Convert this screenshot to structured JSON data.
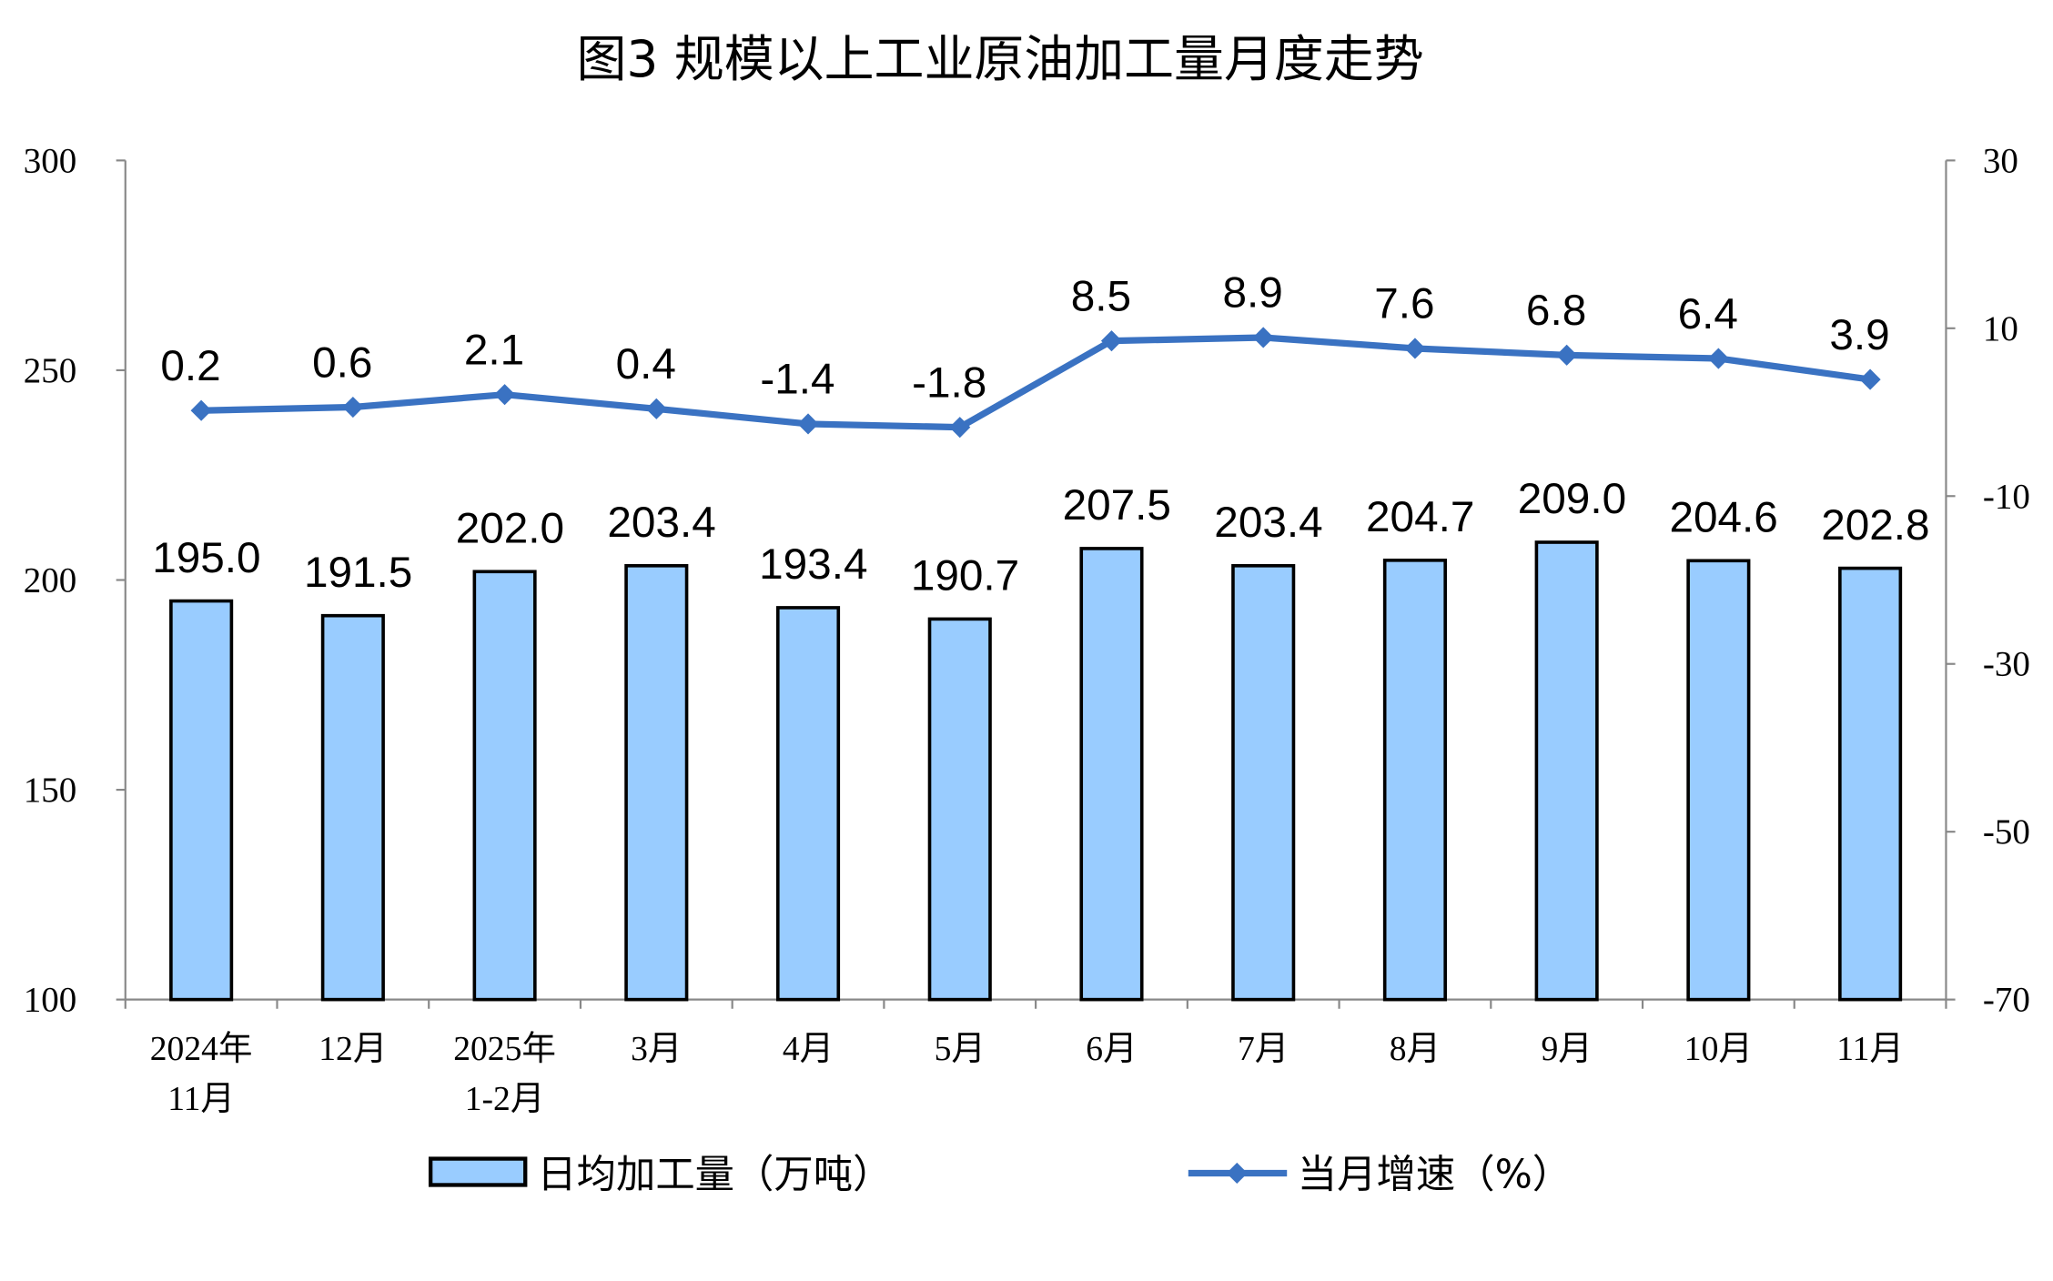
{
  "chart_data": {
    "type": "bar+line",
    "title": "图3  规模以上工业原油加工量月度走势",
    "categories": [
      [
        "2024年",
        "11月"
      ],
      [
        "12月"
      ],
      [
        "2025年",
        "1-2月"
      ],
      [
        "3月"
      ],
      [
        "4月"
      ],
      [
        "5月"
      ],
      [
        "6月"
      ],
      [
        "7月"
      ],
      [
        "8月"
      ],
      [
        "9月"
      ],
      [
        "10月"
      ],
      [
        "11月"
      ]
    ],
    "series": [
      {
        "name": "日均加工量（万吨）",
        "type": "bar",
        "axis": "left",
        "color": "#99CCFF",
        "values": [
          195.0,
          191.5,
          202.0,
          203.4,
          193.4,
          190.7,
          207.5,
          203.4,
          204.7,
          209.0,
          204.6,
          202.8
        ]
      },
      {
        "name": "当月增速（%）",
        "type": "line",
        "axis": "right",
        "color": "#3A72C2",
        "marker": "diamond",
        "values": [
          0.2,
          0.6,
          2.1,
          0.4,
          -1.4,
          -1.8,
          8.5,
          8.9,
          7.6,
          6.8,
          6.4,
          3.9
        ]
      }
    ],
    "y_left": {
      "range": [
        100,
        300
      ],
      "ticks": [
        100,
        150,
        200,
        250,
        300
      ]
    },
    "y_right": {
      "range": [
        -70,
        30
      ],
      "ticks": [
        -70,
        -50,
        -30,
        -10,
        10,
        30
      ]
    },
    "grid": false,
    "legend": "bottom"
  }
}
